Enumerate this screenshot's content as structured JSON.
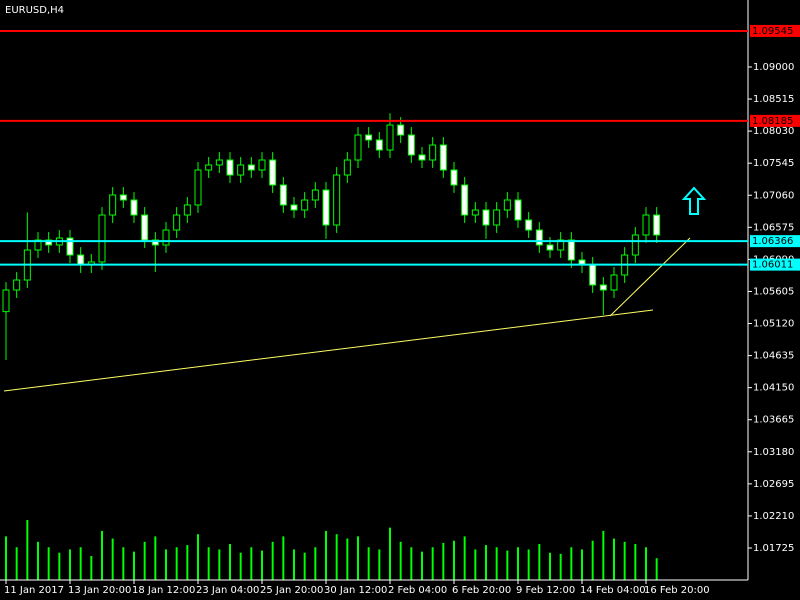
{
  "chart_data": {
    "type": "candlestick",
    "title": "EURUSD,H4",
    "background": "#000000",
    "candle_color": "#00ff00",
    "up_fill": "#000000",
    "down_fill": "#ffffff",
    "categories": [
      "11 Jan 2017",
      null,
      null,
      null,
      null,
      null,
      "13 Jan 20:00",
      null,
      null,
      null,
      null,
      null,
      "18 Jan 12:00",
      null,
      null,
      null,
      null,
      null,
      "23 Jan 04:00",
      null,
      null,
      null,
      null,
      null,
      "25 Jan 20:00",
      null,
      null,
      null,
      null,
      null,
      "30 Jan 12:00",
      null,
      null,
      null,
      null,
      null,
      "2 Feb 04:00",
      null,
      null,
      null,
      null,
      null,
      "6 Feb 20:00",
      null,
      null,
      null,
      null,
      null,
      "9 Feb 12:00",
      null,
      null,
      null,
      null,
      null,
      "14 Feb 04:00",
      null,
      null,
      null,
      null,
      null,
      "16 Feb 20:00",
      null
    ],
    "open": [
      1.053,
      1.05627,
      1.05778,
      1.06232,
      1.06383,
      1.06308,
      1.06413,
      1.06156,
      1.06005,
      1.06051,
      1.06761,
      1.07064,
      1.06988,
      1.06761,
      1.06383,
      1.06308,
      1.06534,
      1.06761,
      1.06913,
      1.07442,
      1.07518,
      1.07593,
      1.07366,
      1.07518,
      1.07442,
      1.07593,
      1.07215,
      1.06913,
      1.06837,
      1.06988,
      1.07139,
      1.0661,
      1.07366,
      1.07593,
      1.07971,
      1.07896,
      1.07744,
      1.08122,
      1.07971,
      1.07669,
      1.07593,
      1.0782,
      1.07442,
      1.07215,
      1.06761,
      1.06837,
      1.0661,
      1.06837,
      1.06988,
      1.06686,
      1.06534,
      1.06308,
      1.06232,
      1.06383,
      1.06081,
      1.06005,
      1.05703,
      1.05627,
      1.05854,
      1.06156,
      1.06459,
      1.06761
    ],
    "high": [
      1.05747,
      1.05898,
      1.068,
      1.06503,
      1.06503,
      1.06533,
      1.06533,
      1.06276,
      1.06171,
      1.06881,
      1.07184,
      1.07184,
      1.07108,
      1.06881,
      1.06503,
      1.06654,
      1.06881,
      1.07033,
      1.07562,
      1.07638,
      1.07713,
      1.07713,
      1.07638,
      1.07638,
      1.07713,
      1.07713,
      1.07335,
      1.07033,
      1.07108,
      1.07259,
      1.07259,
      1.07486,
      1.07713,
      1.08091,
      1.08091,
      1.08016,
      1.083,
      1.08242,
      1.08091,
      1.07789,
      1.0794,
      1.0794,
      1.07562,
      1.07335,
      1.06957,
      1.06957,
      1.06957,
      1.07108,
      1.07108,
      1.06806,
      1.06654,
      1.06428,
      1.06503,
      1.06503,
      1.06201,
      1.06125,
      1.05823,
      1.05974,
      1.06276,
      1.06579,
      1.06881,
      1.06881
    ],
    "low": [
      1.04568,
      1.05507,
      1.05658,
      1.06112,
      1.06188,
      1.06188,
      1.06036,
      1.05885,
      1.05885,
      1.05931,
      1.06641,
      1.06868,
      1.06641,
      1.06263,
      1.059,
      1.06188,
      1.06414,
      1.06641,
      1.06793,
      1.07322,
      1.07398,
      1.07246,
      1.07246,
      1.07322,
      1.07322,
      1.07095,
      1.06793,
      1.06717,
      1.06717,
      1.06868,
      1.064,
      1.0649,
      1.07246,
      1.07473,
      1.07776,
      1.07624,
      1.07624,
      1.07851,
      1.07549,
      1.07473,
      1.07473,
      1.07322,
      1.07095,
      1.06641,
      1.06641,
      1.064,
      1.0649,
      1.06717,
      1.06566,
      1.06414,
      1.06188,
      1.06112,
      1.06112,
      1.05961,
      1.05885,
      1.05583,
      1.05249,
      1.05507,
      1.05734,
      1.06036,
      1.06339,
      1.06339
    ],
    "close": [
      1.05627,
      1.05778,
      1.06232,
      1.06383,
      1.06308,
      1.06413,
      1.06156,
      1.06005,
      1.06051,
      1.06761,
      1.07064,
      1.06988,
      1.06761,
      1.06383,
      1.06308,
      1.06534,
      1.06761,
      1.06913,
      1.07442,
      1.07518,
      1.07593,
      1.07366,
      1.07518,
      1.07442,
      1.07593,
      1.07215,
      1.06913,
      1.06837,
      1.06988,
      1.07139,
      1.0661,
      1.07366,
      1.07593,
      1.07971,
      1.07896,
      1.07744,
      1.08122,
      1.07971,
      1.07669,
      1.07593,
      1.0782,
      1.07442,
      1.07215,
      1.06761,
      1.06837,
      1.0661,
      1.06837,
      1.06988,
      1.06686,
      1.06534,
      1.06308,
      1.06232,
      1.06383,
      1.06081,
      1.06005,
      1.05703,
      1.05627,
      1.05854,
      1.06156,
      1.06459,
      1.06761,
      1.06459
    ],
    "volumes": [
      40,
      30,
      55,
      35,
      30,
      25,
      28,
      30,
      22,
      45,
      38,
      30,
      26,
      35,
      40,
      28,
      30,
      32,
      42,
      30,
      28,
      33,
      25,
      30,
      27,
      35,
      40,
      28,
      25,
      30,
      45,
      42,
      38,
      40,
      30,
      28,
      48,
      35,
      30,
      26,
      30,
      34,
      36,
      40,
      28,
      32,
      30,
      27,
      30,
      28,
      33,
      25,
      24,
      30,
      28,
      36,
      45,
      38,
      35,
      33,
      30,
      20
    ],
    "volume_color": "#00ff00",
    "ylim": [
      1.01241,
      1.10013
    ],
    "yticks": [
      {
        "value": 1.09,
        "label": "1.09000"
      },
      {
        "value": 1.08515,
        "label": "1.08515"
      },
      {
        "value": 1.0803,
        "label": "1.08030"
      },
      {
        "value": 1.07545,
        "label": "1.07545"
      },
      {
        "value": 1.0706,
        "label": "1.07060"
      },
      {
        "value": 1.06575,
        "label": "1.06575"
      },
      {
        "value": 1.0609,
        "label": "1.06090"
      },
      {
        "value": 1.05605,
        "label": "1.05605"
      },
      {
        "value": 1.0512,
        "label": "1.05120"
      },
      {
        "value": 1.04635,
        "label": "1.04635"
      },
      {
        "value": 1.0415,
        "label": "1.04150"
      },
      {
        "value": 1.03665,
        "label": "1.03665"
      },
      {
        "value": 1.0318,
        "label": "1.03180"
      },
      {
        "value": 1.02695,
        "label": "1.02695"
      },
      {
        "value": 1.0221,
        "label": "1.02210"
      },
      {
        "value": 1.01725,
        "label": "1.01725"
      }
    ],
    "levels": [
      {
        "value": 1.09545,
        "label": "1.09545",
        "color": "#ff0000"
      },
      {
        "value": 1.08185,
        "label": "1.08185",
        "color": "#ff0000"
      },
      {
        "value": 1.06366,
        "label": "1.06366",
        "color": "#00ffff"
      },
      {
        "value": 1.06011,
        "label": "1.06011",
        "color": "#00ffff"
      }
    ]
  }
}
